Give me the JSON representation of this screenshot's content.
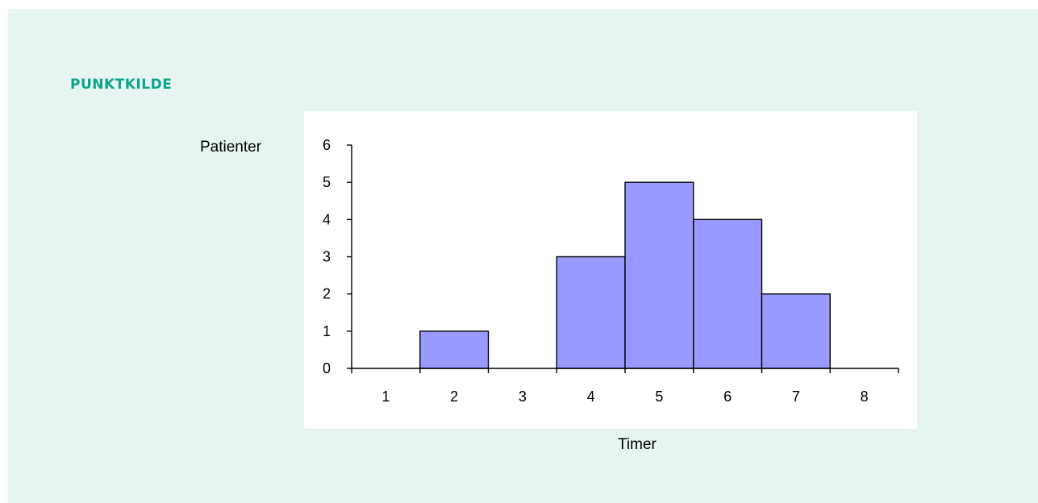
{
  "heading": "PUNKTKILDE",
  "chart_data": {
    "type": "bar",
    "title": "",
    "xlabel": "Timer",
    "ylabel": "Patienter",
    "categories": [
      "1",
      "2",
      "3",
      "4",
      "5",
      "6",
      "7",
      "8"
    ],
    "values": [
      0,
      1,
      0,
      3,
      5,
      4,
      2,
      0
    ],
    "ylim": [
      0,
      6
    ],
    "yticks": [
      "0",
      "1",
      "2",
      "3",
      "4",
      "5",
      "6"
    ],
    "bar_color": "#9999ff",
    "grid": false,
    "legend": "none"
  }
}
